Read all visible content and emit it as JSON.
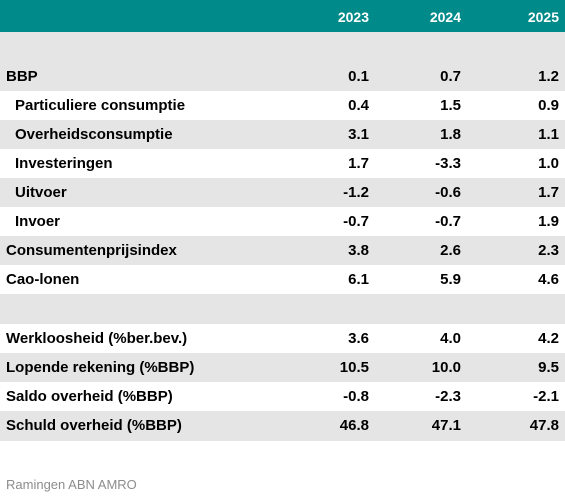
{
  "header": {
    "years": [
      "2023",
      "2024",
      "2025"
    ]
  },
  "rows": [
    {
      "label": "BBP",
      "values": [
        "0.1",
        "0.7",
        "1.2"
      ]
    },
    {
      "label": "Particuliere consumptie",
      "values": [
        "0.4",
        "1.5",
        "0.9"
      ]
    },
    {
      "label": "Overheidsconsumptie",
      "values": [
        "3.1",
        "1.8",
        "1.1"
      ]
    },
    {
      "label": "Investeringen",
      "values": [
        "1.7",
        "-3.3",
        "1.0"
      ]
    },
    {
      "label": "Uitvoer",
      "values": [
        "-1.2",
        "-0.6",
        "1.7"
      ]
    },
    {
      "label": "Invoer",
      "values": [
        "-0.7",
        "-0.7",
        "1.9"
      ]
    },
    {
      "label": "Consumentenprijsindex",
      "values": [
        "3.8",
        "2.6",
        "2.3"
      ]
    },
    {
      "label": "Cao-lonen",
      "values": [
        "6.1",
        "5.9",
        "4.6"
      ]
    },
    {
      "label": "Werkloosheid (%ber.bev.)",
      "values": [
        "3.6",
        "4.0",
        "4.2"
      ]
    },
    {
      "label": "Lopende rekening (%BBP)",
      "values": [
        "10.5",
        "10.0",
        "9.5"
      ]
    },
    {
      "label": "Saldo overheid (%BBP)",
      "values": [
        "-0.8",
        "-2.3",
        "-2.1"
      ]
    },
    {
      "label": "Schuld overheid (%BBP)",
      "values": [
        "46.8",
        "47.1",
        "47.8"
      ]
    }
  ],
  "source": "Ramingen ABN AMRO"
}
